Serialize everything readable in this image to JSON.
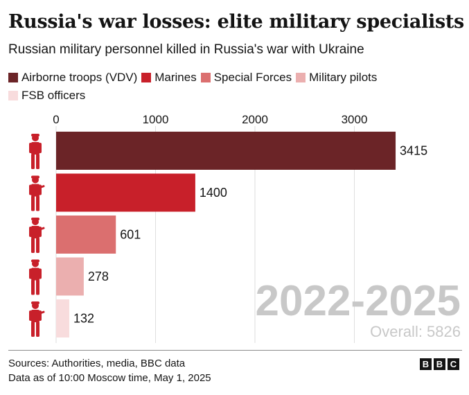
{
  "title": "Russia's war losses: elite military specialists",
  "subtitle": "Russian military personnel killed in Russia's war with Ukraine",
  "chart_data": {
    "type": "bar",
    "orientation": "horizontal",
    "categories": [
      "Airborne troops (VDV)",
      "Marines",
      "Special Forces",
      "Military pilots",
      "FSB officers"
    ],
    "values": [
      3415,
      1400,
      601,
      278,
      132
    ],
    "colors": [
      "#6b2427",
      "#c8202a",
      "#db6f6f",
      "#ebafaf",
      "#f8dcdd"
    ],
    "xticks": [
      0,
      1000,
      2000,
      3000
    ],
    "xlim": [
      0,
      3500
    ],
    "grid": true,
    "legend_position": "top"
  },
  "period": "2022-2025",
  "overall": "Overall: 5826",
  "source_lines": [
    "Sources: Authorities, media, BBC data",
    "Data as of 10:00 Moscow time, May 1, 2025"
  ],
  "logo_letters": [
    "B",
    "B",
    "C"
  ],
  "icon_color": "#c8202a",
  "icons": [
    "soldier-icon",
    "soldier-rifle-icon",
    "soldier-rifle-icon",
    "pilot-icon",
    "soldier-rifle-icon"
  ]
}
